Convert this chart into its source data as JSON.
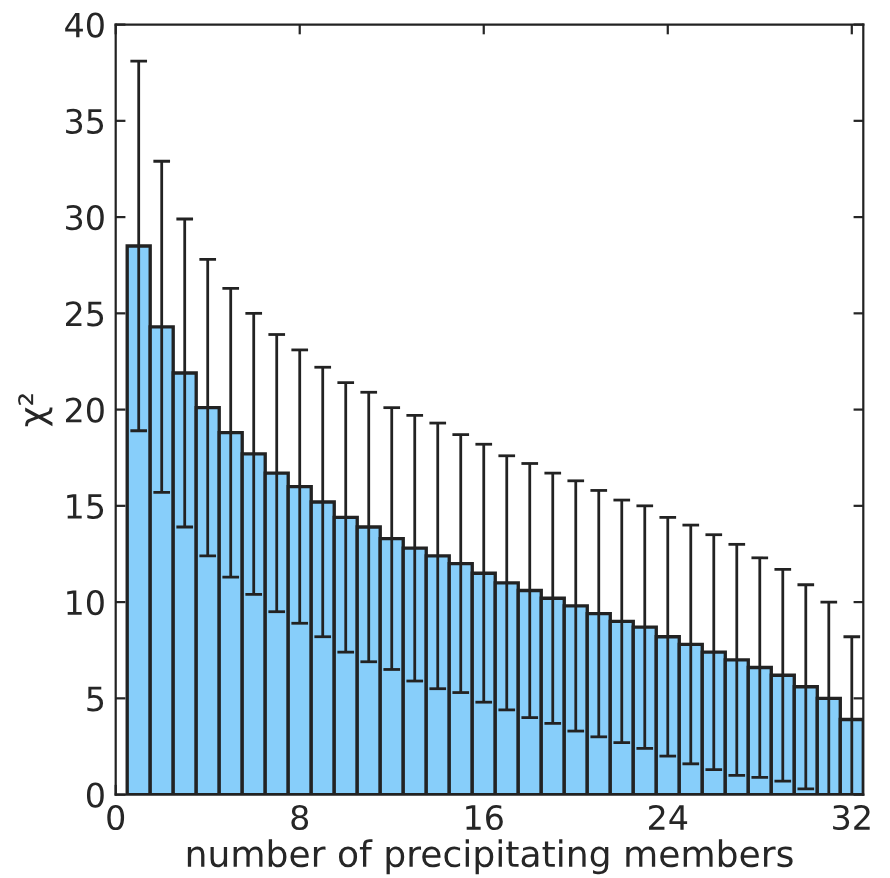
{
  "chart_data": {
    "type": "bar",
    "xlabel": "number of precipitating members",
    "ylabel": "χ²",
    "x": [
      1,
      2,
      3,
      4,
      5,
      6,
      7,
      8,
      9,
      10,
      11,
      12,
      13,
      14,
      15,
      16,
      17,
      18,
      19,
      20,
      21,
      22,
      23,
      24,
      25,
      26,
      27,
      28,
      29,
      30,
      31,
      32
    ],
    "values": [
      28.5,
      24.3,
      21.9,
      20.1,
      18.8,
      17.7,
      16.7,
      16.0,
      15.2,
      14.4,
      13.9,
      13.3,
      12.8,
      12.4,
      12.0,
      11.5,
      11.0,
      10.6,
      10.2,
      9.8,
      9.4,
      9.0,
      8.7,
      8.2,
      7.8,
      7.4,
      7.0,
      6.6,
      6.2,
      5.6,
      5.0,
      3.9
    ],
    "errors": [
      9.6,
      8.6,
      8.0,
      7.7,
      7.5,
      7.3,
      7.2,
      7.1,
      7.0,
      7.0,
      7.0,
      6.8,
      6.9,
      6.9,
      6.7,
      6.7,
      6.6,
      6.6,
      6.5,
      6.5,
      6.4,
      6.3,
      6.3,
      6.2,
      6.2,
      6.1,
      6.0,
      5.7,
      5.5,
      5.3,
      5.0,
      [
        0,
        8.2
      ]
    ],
    "color": "#87cefa",
    "xlim": [
      0,
      32.5
    ],
    "xticks": [
      0,
      8,
      16,
      24,
      32
    ],
    "ylim": [
      0,
      40
    ],
    "yticks": [
      0,
      5,
      10,
      15,
      20,
      25,
      30,
      35,
      40
    ],
    "grid": false,
    "legend": false
  }
}
